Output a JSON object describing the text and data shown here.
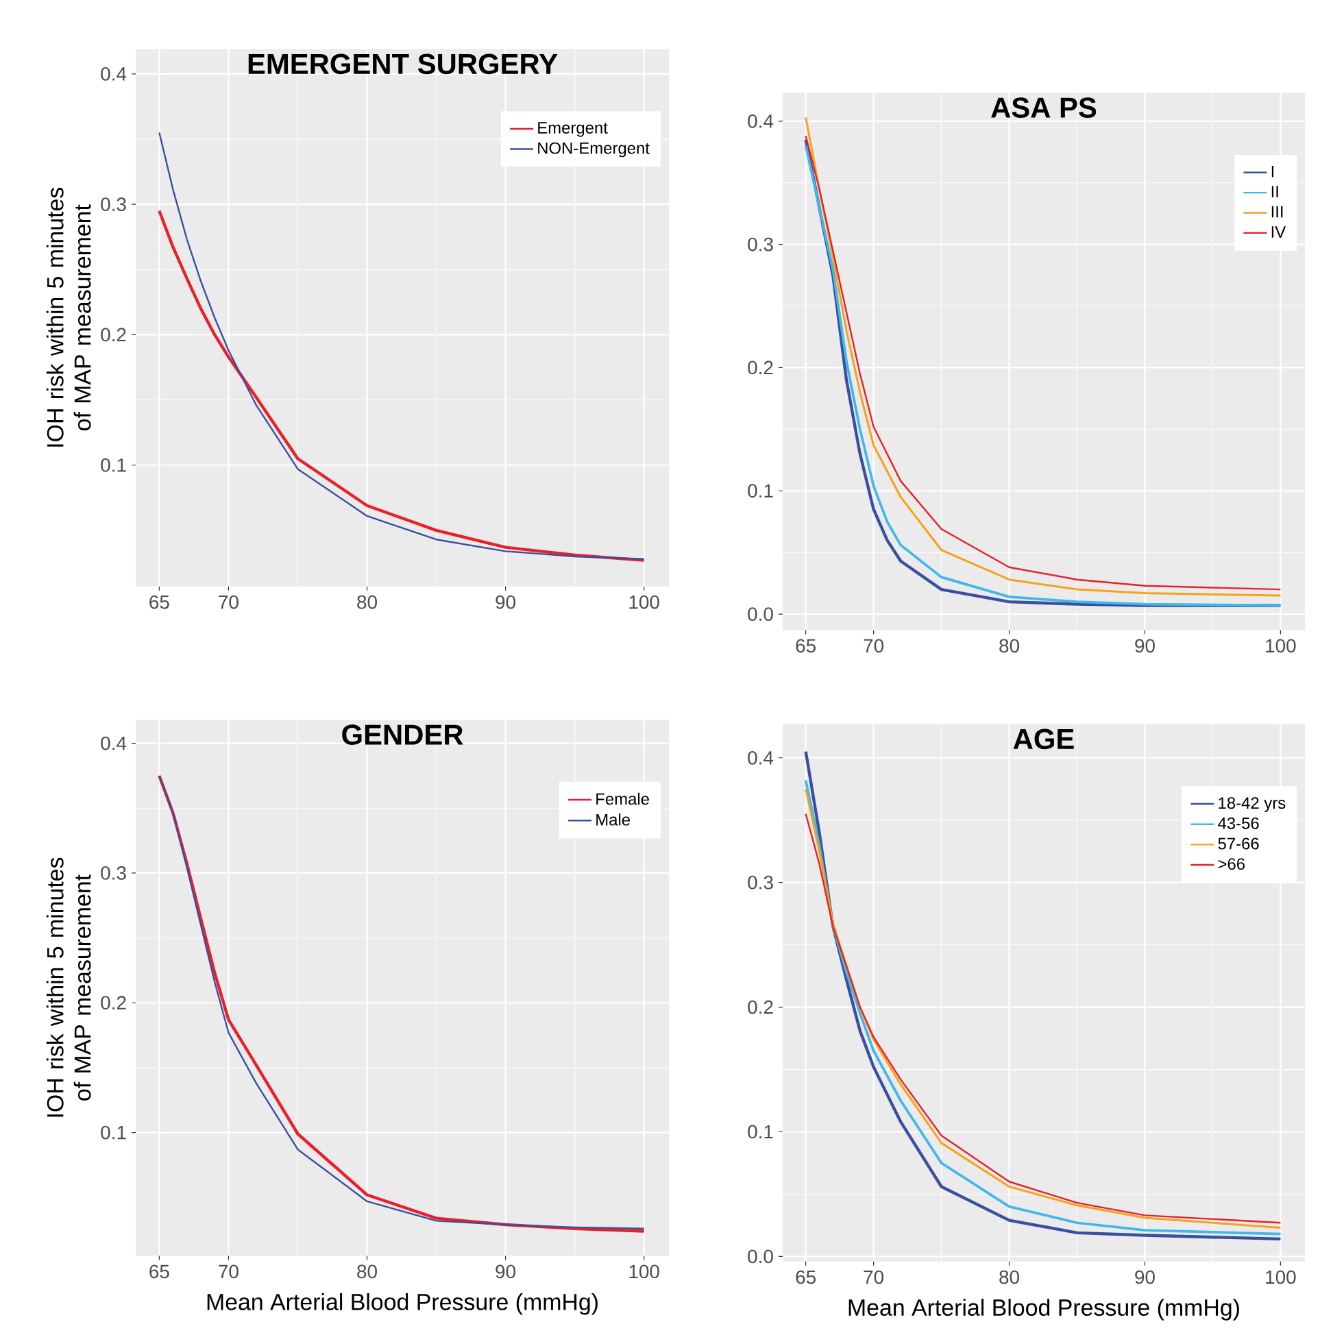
{
  "chart_data": [
    {
      "type": "line",
      "title": "EMERGENT SURGERY",
      "ylabel": "IOH risk within 5 minutes of MAP measurement",
      "xlim": [
        63.3,
        101.8
      ],
      "ylim": [
        0.007,
        0.419
      ],
      "xticks": [
        65,
        70,
        80,
        90,
        100
      ],
      "yticks": [
        0.1,
        0.2,
        0.3,
        0.4
      ],
      "grid": true,
      "legend": "top right",
      "series": [
        {
          "name": "Emergent",
          "color": "#e8202a",
          "x": [
            65,
            66,
            67,
            68,
            69,
            70,
            72,
            75,
            80,
            85,
            90,
            95,
            100
          ],
          "values": [
            0.295,
            0.267,
            0.243,
            0.22,
            0.2,
            0.183,
            0.152,
            0.105,
            0.069,
            0.05,
            0.037,
            0.031,
            0.027
          ]
        },
        {
          "name": "NON-Emergent",
          "color": "#3a4fa0",
          "x": [
            65,
            66,
            67,
            68,
            69,
            70,
            72,
            75,
            80,
            85,
            90,
            95,
            100
          ],
          "values": [
            0.355,
            0.311,
            0.273,
            0.241,
            0.213,
            0.188,
            0.146,
            0.097,
            0.061,
            0.043,
            0.034,
            0.03,
            0.028
          ]
        }
      ]
    },
    {
      "type": "line",
      "title": "ASA PS",
      "xlim": [
        63.3,
        101.8
      ],
      "ylim": [
        -0.013,
        0.423
      ],
      "xticks": [
        65,
        70,
        80,
        90,
        100
      ],
      "yticks": [
        {
          "value": 0,
          "label": "0.0"
        },
        0.1,
        0.2,
        0.3,
        0.4
      ],
      "grid": true,
      "legend": "top right",
      "series": [
        {
          "name": "I",
          "color": "#3a4fa0",
          "x": [
            65,
            66,
            67,
            68,
            69,
            70,
            71,
            72,
            75,
            80,
            85,
            90,
            100
          ],
          "values": [
            0.385,
            0.33,
            0.275,
            0.19,
            0.13,
            0.085,
            0.06,
            0.043,
            0.02,
            0.01,
            0.008,
            0.007,
            0.007
          ]
        },
        {
          "name": "II",
          "color": "#3fb8ea",
          "x": [
            65,
            66,
            67,
            68,
            69,
            70,
            71,
            72,
            75,
            80,
            85,
            90,
            100
          ],
          "values": [
            0.38,
            0.33,
            0.28,
            0.205,
            0.15,
            0.104,
            0.075,
            0.056,
            0.03,
            0.014,
            0.01,
            0.008,
            0.007
          ]
        },
        {
          "name": "III",
          "color": "#f7a21b",
          "x": [
            65,
            66,
            67,
            68,
            69,
            70,
            72,
            75,
            80,
            85,
            90,
            100
          ],
          "values": [
            0.403,
            0.345,
            0.29,
            0.23,
            0.18,
            0.137,
            0.095,
            0.052,
            0.028,
            0.02,
            0.017,
            0.015
          ]
        },
        {
          "name": "IV",
          "color": "#e8202a",
          "x": [
            65,
            66,
            67,
            68,
            69,
            70,
            72,
            75,
            80,
            85,
            90,
            100
          ],
          "values": [
            0.388,
            0.345,
            0.295,
            0.245,
            0.195,
            0.152,
            0.108,
            0.069,
            0.038,
            0.028,
            0.023,
            0.02
          ]
        }
      ]
    },
    {
      "type": "line",
      "title": "GENDER",
      "xlabel": "Mean Arterial Blood Pressure (mmHg)",
      "ylabel": "IOH risk within 5 minutes of MAP measurement",
      "xlim": [
        63.3,
        101.8
      ],
      "ylim": [
        0.005,
        0.418
      ],
      "xticks": [
        65,
        70,
        80,
        90,
        100
      ],
      "yticks": [
        0.1,
        0.2,
        0.3,
        0.4
      ],
      "grid": true,
      "legend": "top right",
      "series": [
        {
          "name": "Female",
          "color": "#e8202a",
          "x": [
            65,
            66,
            67,
            68,
            69,
            70,
            72,
            75,
            80,
            85,
            90,
            95,
            100
          ],
          "values": [
            0.375,
            0.346,
            0.307,
            0.265,
            0.223,
            0.187,
            0.152,
            0.099,
            0.052,
            0.034,
            0.029,
            0.026,
            0.024
          ]
        },
        {
          "name": "Male",
          "color": "#3a4fa0",
          "x": [
            65,
            66,
            67,
            68,
            69,
            70,
            72,
            75,
            80,
            85,
            90,
            95,
            100
          ],
          "values": [
            0.375,
            0.346,
            0.304,
            0.26,
            0.216,
            0.177,
            0.138,
            0.087,
            0.047,
            0.032,
            0.029,
            0.027,
            0.026
          ]
        }
      ]
    },
    {
      "type": "line",
      "title": "AGE",
      "xlabel": "Mean Arterial Blood Pressure (mmHg)",
      "xlim": [
        63.3,
        101.8
      ],
      "ylim": [
        -0.004,
        0.427
      ],
      "xticks": [
        65,
        70,
        80,
        90,
        100
      ],
      "yticks": [
        {
          "value": 0,
          "label": "0.0"
        },
        0.1,
        0.2,
        0.3,
        0.4
      ],
      "grid": true,
      "legend": "top right",
      "series": [
        {
          "name": "18-42 yrs",
          "color": "#3a4fa0",
          "x": [
            65,
            66,
            67,
            68,
            69,
            70,
            72,
            75,
            80,
            85,
            90,
            100
          ],
          "values": [
            0.405,
            0.34,
            0.265,
            0.222,
            0.181,
            0.152,
            0.108,
            0.056,
            0.029,
            0.019,
            0.017,
            0.014
          ]
        },
        {
          "name": "43-56",
          "color": "#3fb8ea",
          "x": [
            65,
            66,
            67,
            68,
            69,
            70,
            72,
            75,
            80,
            85,
            90,
            100
          ],
          "values": [
            0.382,
            0.33,
            0.265,
            0.228,
            0.195,
            0.165,
            0.125,
            0.075,
            0.04,
            0.027,
            0.021,
            0.018
          ]
        },
        {
          "name": "57-66",
          "color": "#f7a21b",
          "x": [
            65,
            66,
            67,
            68,
            69,
            70,
            72,
            75,
            80,
            85,
            90,
            100
          ],
          "values": [
            0.375,
            0.325,
            0.268,
            0.233,
            0.2,
            0.174,
            0.138,
            0.091,
            0.056,
            0.041,
            0.031,
            0.023
          ]
        },
        {
          "name": ">66",
          "color": "#e8202a",
          "x": [
            65,
            66,
            67,
            68,
            69,
            70,
            72,
            75,
            80,
            85,
            90,
            100
          ],
          "values": [
            0.355,
            0.315,
            0.265,
            0.233,
            0.2,
            0.176,
            0.142,
            0.097,
            0.06,
            0.043,
            0.033,
            0.027
          ]
        }
      ]
    }
  ]
}
